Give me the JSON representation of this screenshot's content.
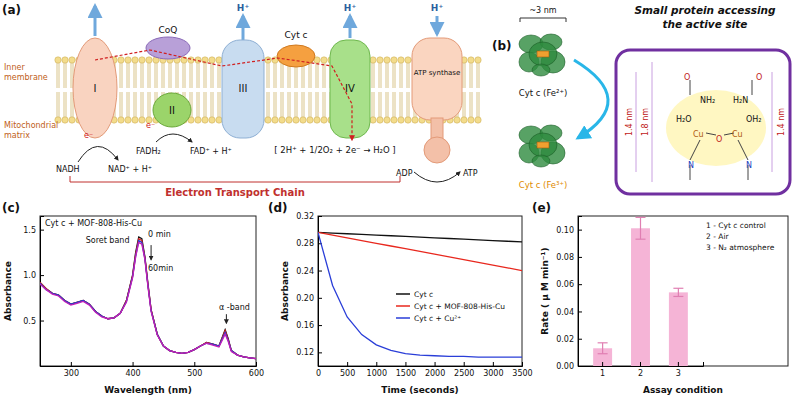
{
  "diagram_a": {
    "label": "(a)",
    "proton": "H⁺",
    "complexes": [
      "I",
      "II",
      "III",
      "IV"
    ],
    "carriers": [
      "CoQ",
      "Cyt c"
    ],
    "atp_synthase": "ATP synthase",
    "electron": "e⁻",
    "membrane_labels": [
      [
        "Inner",
        "membrane"
      ],
      [
        "Mitochondrial",
        "matrix"
      ]
    ],
    "substrates": [
      "NADH",
      "NAD⁺ + H⁺",
      "FADH₂",
      "FAD⁺ + H⁺"
    ],
    "reaction": "[ 2H⁺ + 1/2O₂ + 2e⁻ → H₂O ]",
    "atp_reaction": [
      "ADP",
      "ATP"
    ],
    "footer": "Electron Transport Chain"
  },
  "diagram_b": {
    "label": "(b)",
    "size": "~3 nm",
    "title": [
      "Small protein accessing",
      "the active site"
    ],
    "proteins": [
      "Cyt c (Fe²⁺)",
      "Cyt c (Fe³⁺)"
    ],
    "pore_dimensions": [
      "1.4 nm",
      "1.8 nm",
      "1.4 nm"
    ],
    "structure_labels": [
      "O",
      "NH₂",
      "O",
      "H₂N",
      "H₂O",
      "Cu",
      "O",
      "Cu",
      "OH₂",
      "N",
      "N"
    ]
  },
  "chart_data": [
    {
      "type": "line",
      "label": "(c)",
      "title": "Cyt c + MOF-808-His-Cu",
      "x_label": "Wavelength (nm)",
      "y_label": "Absorbance",
      "annotations": [
        "Soret band",
        "0 min",
        "60min",
        "α -band"
      ],
      "x": [
        250,
        260,
        270,
        280,
        290,
        300,
        310,
        320,
        330,
        340,
        350,
        360,
        370,
        380,
        390,
        400,
        405,
        410,
        415,
        420,
        425,
        430,
        440,
        450,
        460,
        470,
        480,
        490,
        500,
        510,
        520,
        530,
        540,
        550,
        555,
        560,
        570,
        580,
        590,
        600
      ],
      "series": [
        {
          "color": "#111111",
          "values": [
            0.92,
            0.85,
            0.8,
            0.78,
            0.72,
            0.68,
            0.7,
            0.72,
            0.68,
            0.6,
            0.55,
            0.52,
            0.53,
            0.58,
            0.72,
            1.0,
            1.25,
            1.42,
            1.4,
            1.2,
            0.9,
            0.62,
            0.35,
            0.22,
            0.17,
            0.15,
            0.14,
            0.15,
            0.18,
            0.22,
            0.26,
            0.24,
            0.22,
            0.4,
            0.3,
            0.17,
            0.12,
            0.1,
            0.09,
            0.08
          ]
        },
        {
          "color": "#e0201a",
          "values": [
            0.92,
            0.85,
            0.8,
            0.78,
            0.72,
            0.68,
            0.7,
            0.72,
            0.68,
            0.6,
            0.55,
            0.52,
            0.53,
            0.58,
            0.72,
            0.99,
            1.23,
            1.4,
            1.38,
            1.19,
            0.89,
            0.62,
            0.35,
            0.22,
            0.17,
            0.15,
            0.14,
            0.15,
            0.18,
            0.22,
            0.26,
            0.24,
            0.22,
            0.39,
            0.29,
            0.17,
            0.12,
            0.1,
            0.09,
            0.08
          ]
        },
        {
          "color": "#1f3fd0",
          "values": [
            0.91,
            0.84,
            0.8,
            0.78,
            0.72,
            0.68,
            0.7,
            0.72,
            0.68,
            0.6,
            0.55,
            0.52,
            0.53,
            0.58,
            0.71,
            0.98,
            1.21,
            1.38,
            1.36,
            1.18,
            0.88,
            0.61,
            0.35,
            0.22,
            0.17,
            0.15,
            0.14,
            0.15,
            0.18,
            0.22,
            0.25,
            0.24,
            0.22,
            0.37,
            0.28,
            0.17,
            0.12,
            0.1,
            0.09,
            0.08
          ]
        },
        {
          "color": "#c21fb8",
          "values": [
            0.9,
            0.84,
            0.79,
            0.77,
            0.71,
            0.67,
            0.69,
            0.71,
            0.67,
            0.59,
            0.54,
            0.52,
            0.53,
            0.58,
            0.7,
            0.97,
            1.2,
            1.36,
            1.34,
            1.17,
            0.87,
            0.6,
            0.34,
            0.22,
            0.17,
            0.15,
            0.14,
            0.15,
            0.18,
            0.22,
            0.25,
            0.23,
            0.21,
            0.35,
            0.27,
            0.16,
            0.12,
            0.1,
            0.09,
            0.08
          ]
        }
      ],
      "xlim": [
        250,
        600
      ],
      "xticks": [
        300,
        400,
        500,
        600
      ],
      "ylim": [
        0,
        1.65
      ],
      "yticks": [
        0.5,
        {
          "value": 1,
          "label": "1.0"
        },
        1.5
      ]
    },
    {
      "type": "line",
      "label": "(d)",
      "x_label": "Time (seconds)",
      "y_label": "Absorbance",
      "legend": "right",
      "x": [
        0,
        250,
        500,
        750,
        1000,
        1250,
        1500,
        1750,
        2000,
        2250,
        2500,
        2750,
        3000,
        3250,
        3500
      ],
      "series": [
        {
          "name": "Cyt c",
          "color": "#111111",
          "values": [
            0.296,
            0.295,
            0.294,
            0.293,
            0.292,
            0.291,
            0.29,
            0.289,
            0.288,
            0.287,
            0.286,
            0.285,
            0.284,
            0.283,
            0.282
          ]
        },
        {
          "name": "Cyt c + MOF-808-His-Cu",
          "color": "#e8281e",
          "values": [
            0.296,
            0.292,
            0.288,
            0.284,
            0.28,
            0.276,
            0.272,
            0.268,
            0.264,
            0.26,
            0.256,
            0.252,
            0.248,
            0.244,
            0.24
          ]
        },
        {
          "name": "Cyt c + Cu²⁺",
          "color": "#2a3ed8",
          "values": [
            0.296,
            0.218,
            0.172,
            0.146,
            0.131,
            0.123,
            0.118,
            0.116,
            0.115,
            0.114,
            0.114,
            0.113,
            0.113,
            0.113,
            0.113
          ]
        }
      ],
      "xlim": [
        0,
        3500
      ],
      "xticks": [
        0,
        500,
        1000,
        1500,
        2000,
        2500,
        3000,
        3500
      ],
      "ylim": [
        0.1,
        0.32
      ],
      "yticks": [
        0.12,
        0.16,
        {
          "value": 0.2,
          "label": "0.20"
        },
        0.24,
        0.28,
        0.32
      ]
    },
    {
      "type": "bar",
      "label": "(e)",
      "x_label": "Assay condition",
      "y_label": "Rate ( μ M min⁻¹)",
      "annotations": [
        "1 - Cyt c control",
        "2 - Air",
        "3 - N₂ atmosphere"
      ],
      "categories": [
        "1",
        "2",
        "3"
      ],
      "values": [
        0.013,
        0.101,
        0.054
      ],
      "errors": [
        0.004,
        0.008,
        0.003
      ],
      "color": "#f5b4d6",
      "ylim": [
        0,
        0.11
      ],
      "yticks": [
        {
          "value": 0,
          "label": "0.00"
        },
        0.02,
        0.04,
        0.06,
        0.08,
        {
          "value": 0.1,
          "label": "0.10"
        }
      ]
    }
  ]
}
